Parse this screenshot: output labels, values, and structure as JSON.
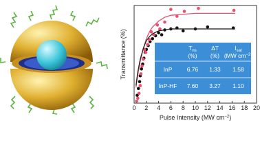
{
  "chart_data": {
    "type": "scatter",
    "xlabel": {
      "text": "Pulse Intensity (MW cm",
      "sup": "−2",
      "end": ")"
    },
    "ylabel": "Transmittance (%)",
    "xlim": [
      0,
      20
    ],
    "xticks": [
      0,
      2,
      4,
      6,
      8,
      10,
      12,
      14,
      16,
      18,
      20
    ],
    "ylim": [
      0,
      10
    ],
    "series": [
      {
        "color": "#111111",
        "mode": "markers",
        "x": [
          0.5,
          0.7,
          0.9,
          1.0,
          1.2,
          1.4,
          1.6,
          1.8,
          2.0,
          2.3,
          2.6,
          3.0,
          3.5,
          4.0,
          4.5,
          5.0,
          6.0,
          7.0,
          8.0,
          10.0,
          12.0,
          16.2
        ],
        "values": [
          0.8,
          1.5,
          2.2,
          2.8,
          3.5,
          4.0,
          4.6,
          5.2,
          5.5,
          5.9,
          6.3,
          6.6,
          6.9,
          7.2,
          7.0,
          7.5,
          7.6,
          7.7,
          7.4,
          7.6,
          7.8,
          7.7
        ]
      },
      {
        "color": "#e8506e",
        "mode": "markers",
        "x": [
          0.4,
          0.6,
          0.8,
          1.0,
          1.1,
          1.3,
          1.5,
          1.7,
          1.9,
          2.2,
          2.5,
          2.8,
          3.2,
          3.8,
          4.2,
          5.0,
          6.0,
          7.0,
          8.2,
          10.5,
          16.3
        ],
        "values": [
          0.2,
          0.5,
          1.0,
          1.8,
          3.0,
          3.8,
          4.5,
          5.5,
          5.2,
          6.0,
          6.5,
          7.3,
          7.0,
          8.0,
          7.6,
          8.3,
          9.6,
          8.9,
          9.4,
          9.7,
          9.5
        ]
      },
      {
        "color": "#e8506e",
        "mode": "line",
        "x": [
          0.3,
          0.6,
          1,
          1.5,
          2,
          2.5,
          3,
          4,
          5,
          6,
          8,
          10,
          12,
          16.5
        ],
        "values": [
          1.6,
          2.9,
          4.3,
          5.6,
          6.6,
          7.3,
          7.8,
          8.4,
          8.8,
          9.0,
          9.1,
          9.2,
          9.2,
          9.2
        ]
      },
      {
        "color": "#222222",
        "mode": "line",
        "x": [
          0.3,
          0.6,
          1,
          1.5,
          2,
          2.5,
          3,
          4,
          5,
          6,
          8,
          10,
          12,
          16.5
        ],
        "values": [
          1.8,
          3.2,
          4.5,
          5.6,
          6.4,
          6.8,
          7.1,
          7.4,
          7.5,
          7.6,
          7.6,
          7.6,
          7.6,
          7.6
        ]
      }
    ],
    "table": {
      "color": "#3c8fd6",
      "header": [
        {
          "text": "T",
          "sub": "ns",
          "unit": "(%)"
        },
        {
          "text": "ΔT",
          "unit": "(%)"
        },
        {
          "text": "I",
          "sub": "sat",
          "unit": "(MW cm",
          "unit_sup": "−2",
          "unit_end": ")"
        }
      ],
      "rows": [
        [
          "InP",
          "6.76",
          "1.33",
          "1.58"
        ],
        [
          "InP-HF",
          "7.60",
          "3.27",
          "1.10"
        ]
      ]
    }
  }
}
